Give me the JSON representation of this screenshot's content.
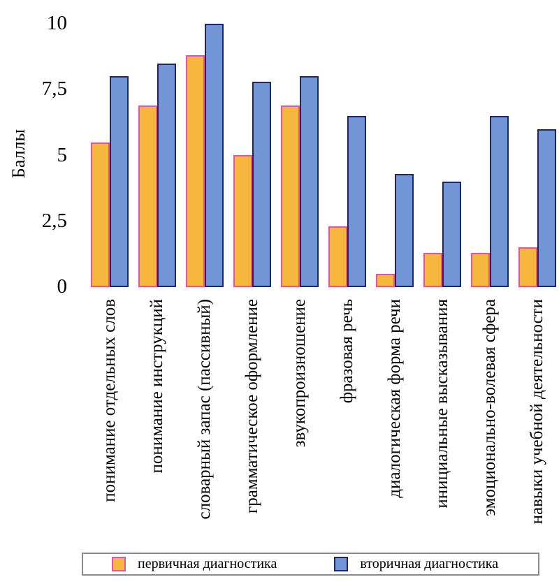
{
  "chart_data": {
    "type": "bar",
    "title": "",
    "xlabel": "",
    "ylabel": "Баллы",
    "ylim": [
      0,
      10
    ],
    "grid": false,
    "legend_position": "bottom",
    "y_ticks": [
      "0",
      "2,5",
      "5",
      "7,5",
      "10"
    ],
    "y_tick_values": [
      0,
      2.5,
      5,
      7.5,
      10
    ],
    "categories": [
      "понимание отдельных слов",
      "понимание инструкций",
      "словарный запас (пассивный)",
      "грамматическое оформление",
      "звукопроизношение",
      "фразовая речь",
      "диалогическая форма речи",
      "инициальные высказывания",
      "эмоционально-волевая сфера",
      "навыки учебной деятельности"
    ],
    "series": [
      {
        "name": "первичная диагностика",
        "color": "#F7B63E",
        "border_color": "#E054AE",
        "values": [
          5.5,
          6.9,
          8.8,
          5,
          6.9,
          2.3,
          0.5,
          1.3,
          1.3,
          1.5
        ]
      },
      {
        "name": "вторичная диагностика",
        "color": "#7295D5",
        "border_color": "#1B2671",
        "values": [
          8,
          8.5,
          10,
          7.8,
          8,
          6.5,
          4.3,
          4,
          6.5,
          6
        ]
      }
    ]
  }
}
